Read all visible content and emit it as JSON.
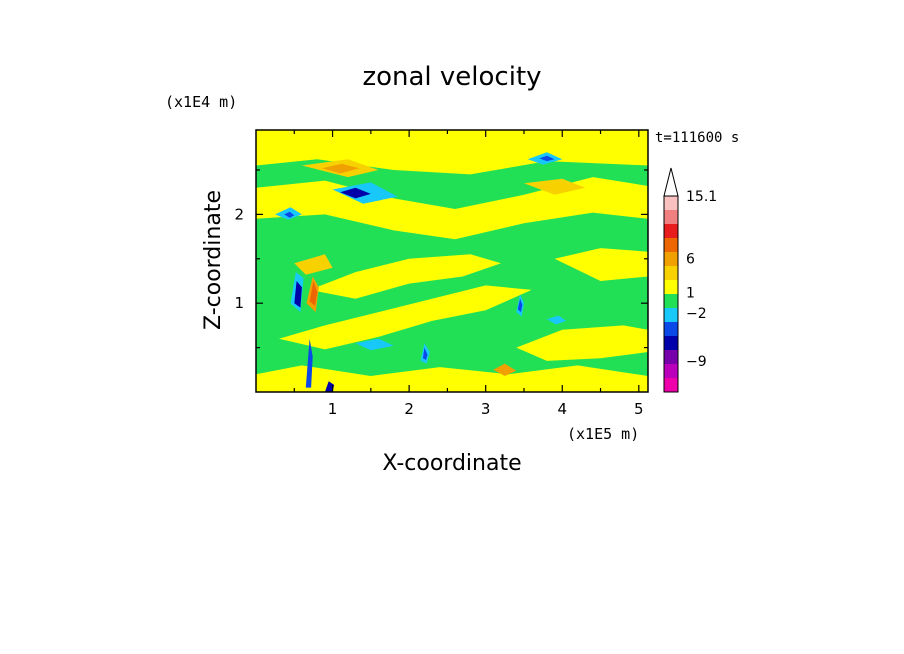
{
  "chart_data": {
    "type": "heatmap",
    "title": "zonal velocity",
    "xlabel": "X-coordinate",
    "ylabel": "Z-coordinate",
    "x_scale_label": "(x1E5 m)",
    "y_scale_label": "(x1E4 m)",
    "time_label": "t=111600 s",
    "xlim": [
      0,
      5.12
    ],
    "ylim": [
      0,
      2.95
    ],
    "x_ticks": [
      1,
      2,
      3,
      4,
      5
    ],
    "y_ticks": [
      1,
      2
    ],
    "x_tick_labels": [
      "1",
      "2",
      "3",
      "4",
      "5"
    ],
    "y_tick_labels": [
      "1",
      "2"
    ],
    "background_color": "#22e056",
    "colorbar": {
      "levels": [
        {
          "color": "#ee00aa"
        },
        {
          "color": "#bb00bb"
        },
        {
          "color": "#7700aa"
        },
        {
          "color": "#0000aa"
        },
        {
          "color": "#0a48e8"
        },
        {
          "color": "#18c8f8"
        },
        {
          "color": "#22e056"
        },
        {
          "color": "#ffff00"
        },
        {
          "color": "#f7d200"
        },
        {
          "color": "#f0a000"
        },
        {
          "color": "#ee6600"
        },
        {
          "color": "#e81c1c"
        },
        {
          "color": "#f08080"
        },
        {
          "color": "#f9c0c0"
        }
      ],
      "tick_labels": [
        "15.1",
        "6",
        "1",
        "−2",
        "−9"
      ],
      "tick_values": [
        15.1,
        6,
        1,
        -2,
        -9
      ]
    },
    "bands": [
      {
        "color": "#ffff00",
        "points": [
          [
            0,
            0
          ],
          [
            5.12,
            0
          ],
          [
            5.12,
            0.18
          ],
          [
            4.2,
            0.3
          ],
          [
            3.3,
            0.2
          ],
          [
            2.4,
            0.28
          ],
          [
            1.5,
            0.18
          ],
          [
            0.6,
            0.3
          ],
          [
            0,
            0.2
          ]
        ]
      },
      {
        "color": "#ffff00",
        "points": [
          [
            0,
            2.55
          ],
          [
            0.8,
            2.62
          ],
          [
            1.8,
            2.5
          ],
          [
            2.8,
            2.45
          ],
          [
            3.8,
            2.6
          ],
          [
            5.12,
            2.55
          ],
          [
            5.12,
            2.95
          ],
          [
            0,
            2.95
          ]
        ]
      },
      {
        "color": "#ffff00",
        "points": [
          [
            0,
            1.95
          ],
          [
            0.9,
            2.0
          ],
          [
            1.8,
            1.82
          ],
          [
            2.6,
            1.72
          ],
          [
            3.5,
            1.9
          ],
          [
            4.4,
            2.02
          ],
          [
            5.12,
            1.95
          ],
          [
            5.12,
            2.32
          ],
          [
            4.4,
            2.42
          ],
          [
            3.5,
            2.22
          ],
          [
            2.6,
            2.06
          ],
          [
            1.8,
            2.18
          ],
          [
            0.9,
            2.38
          ],
          [
            0,
            2.3
          ]
        ]
      },
      {
        "color": "#ffff00",
        "points": [
          [
            0.3,
            0.6
          ],
          [
            0.9,
            0.75
          ],
          [
            1.6,
            0.9
          ],
          [
            2.3,
            1.05
          ],
          [
            3.0,
            1.2
          ],
          [
            3.6,
            1.15
          ],
          [
            3.0,
            0.92
          ],
          [
            2.3,
            0.8
          ],
          [
            1.6,
            0.62
          ],
          [
            0.9,
            0.48
          ]
        ]
      },
      {
        "color": "#ffff00",
        "points": [
          [
            0.7,
            1.15
          ],
          [
            1.3,
            1.35
          ],
          [
            2.0,
            1.5
          ],
          [
            2.8,
            1.55
          ],
          [
            3.2,
            1.45
          ],
          [
            2.7,
            1.3
          ],
          [
            2.0,
            1.22
          ],
          [
            1.3,
            1.05
          ]
        ]
      },
      {
        "color": "#ffff00",
        "points": [
          [
            3.4,
            0.5
          ],
          [
            4.0,
            0.7
          ],
          [
            4.8,
            0.75
          ],
          [
            5.12,
            0.7
          ],
          [
            5.12,
            0.45
          ],
          [
            4.5,
            0.38
          ],
          [
            3.8,
            0.35
          ]
        ]
      },
      {
        "color": "#ffff00",
        "points": [
          [
            3.9,
            1.5
          ],
          [
            4.5,
            1.62
          ],
          [
            5.12,
            1.58
          ],
          [
            5.12,
            1.3
          ],
          [
            4.5,
            1.25
          ]
        ]
      },
      {
        "color": "#f7d200",
        "points": [
          [
            0.6,
            2.55
          ],
          [
            1.2,
            2.62
          ],
          [
            1.6,
            2.5
          ],
          [
            1.2,
            2.42
          ]
        ]
      },
      {
        "color": "#f7d200",
        "points": [
          [
            3.5,
            2.35
          ],
          [
            4.0,
            2.4
          ],
          [
            4.3,
            2.3
          ],
          [
            3.9,
            2.22
          ]
        ]
      },
      {
        "color": "#f7d200",
        "points": [
          [
            0.5,
            1.45
          ],
          [
            0.9,
            1.55
          ],
          [
            1.0,
            1.4
          ],
          [
            0.65,
            1.32
          ]
        ]
      },
      {
        "color": "#f0a000",
        "points": [
          [
            0.86,
            2.52
          ],
          [
            1.12,
            2.57
          ],
          [
            1.35,
            2.52
          ],
          [
            1.1,
            2.46
          ]
        ]
      },
      {
        "color": "#f0a000",
        "points": [
          [
            0.66,
            1.0
          ],
          [
            0.74,
            1.3
          ],
          [
            0.82,
            1.18
          ],
          [
            0.78,
            0.9
          ]
        ]
      },
      {
        "color": "#ee6600",
        "points": [
          [
            0.7,
            1.02
          ],
          [
            0.75,
            1.25
          ],
          [
            0.8,
            1.12
          ],
          [
            0.77,
            0.97
          ]
        ]
      },
      {
        "color": "#f0a000",
        "points": [
          [
            3.1,
            0.25
          ],
          [
            3.25,
            0.32
          ],
          [
            3.4,
            0.24
          ],
          [
            3.25,
            0.18
          ]
        ]
      },
      {
        "color": "#18c8f8",
        "points": [
          [
            1.0,
            2.28
          ],
          [
            1.5,
            2.36
          ],
          [
            1.85,
            2.2
          ],
          [
            1.4,
            2.12
          ]
        ]
      },
      {
        "color": "#0000aa",
        "points": [
          [
            1.1,
            2.25
          ],
          [
            1.3,
            2.3
          ],
          [
            1.5,
            2.23
          ],
          [
            1.3,
            2.18
          ]
        ]
      },
      {
        "color": "#18c8f8",
        "points": [
          [
            3.55,
            2.62
          ],
          [
            3.8,
            2.7
          ],
          [
            4.0,
            2.62
          ],
          [
            3.75,
            2.56
          ]
        ]
      },
      {
        "color": "#0a48e8",
        "points": [
          [
            3.7,
            2.63
          ],
          [
            3.8,
            2.66
          ],
          [
            3.9,
            2.62
          ],
          [
            3.8,
            2.6
          ]
        ]
      },
      {
        "color": "#18c8f8",
        "points": [
          [
            0.25,
            2.0
          ],
          [
            0.45,
            2.08
          ],
          [
            0.6,
            2.0
          ],
          [
            0.42,
            1.94
          ]
        ]
      },
      {
        "color": "#0a48e8",
        "points": [
          [
            0.37,
            2.0
          ],
          [
            0.44,
            2.03
          ],
          [
            0.5,
            1.99
          ],
          [
            0.44,
            1.96
          ]
        ]
      },
      {
        "color": "#18c8f8",
        "points": [
          [
            0.45,
            1.0
          ],
          [
            0.52,
            1.35
          ],
          [
            0.62,
            1.28
          ],
          [
            0.58,
            0.9
          ]
        ]
      },
      {
        "color": "#0000aa",
        "points": [
          [
            0.5,
            1.0
          ],
          [
            0.53,
            1.25
          ],
          [
            0.6,
            1.18
          ],
          [
            0.58,
            0.95
          ]
        ]
      },
      {
        "color": "#0a48e8",
        "points": [
          [
            0.65,
            0.05
          ],
          [
            0.7,
            0.6
          ],
          [
            0.74,
            0.4
          ],
          [
            0.72,
            0.05
          ]
        ]
      },
      {
        "color": "#0000aa",
        "points": [
          [
            0.9,
            0.0
          ],
          [
            0.95,
            0.12
          ],
          [
            1.02,
            0.08
          ],
          [
            1.0,
            0.0
          ]
        ]
      },
      {
        "color": "#18c8f8",
        "points": [
          [
            1.3,
            0.55
          ],
          [
            1.6,
            0.6
          ],
          [
            1.8,
            0.52
          ],
          [
            1.5,
            0.47
          ]
        ]
      },
      {
        "color": "#18c8f8",
        "points": [
          [
            2.15,
            0.35
          ],
          [
            2.2,
            0.55
          ],
          [
            2.27,
            0.45
          ],
          [
            2.23,
            0.32
          ]
        ]
      },
      {
        "color": "#0a48e8",
        "points": [
          [
            2.18,
            0.38
          ],
          [
            2.2,
            0.5
          ],
          [
            2.24,
            0.42
          ],
          [
            2.22,
            0.36
          ]
        ]
      },
      {
        "color": "#18c8f8",
        "points": [
          [
            3.4,
            0.9
          ],
          [
            3.45,
            1.1
          ],
          [
            3.5,
            1.0
          ],
          [
            3.47,
            0.85
          ]
        ]
      },
      {
        "color": "#0a48e8",
        "points": [
          [
            3.42,
            0.93
          ],
          [
            3.45,
            1.05
          ],
          [
            3.48,
            0.98
          ],
          [
            3.46,
            0.9
          ]
        ]
      },
      {
        "color": "#18c8f8",
        "points": [
          [
            3.8,
            0.82
          ],
          [
            3.95,
            0.86
          ],
          [
            4.05,
            0.8
          ],
          [
            3.92,
            0.76
          ]
        ]
      }
    ]
  }
}
